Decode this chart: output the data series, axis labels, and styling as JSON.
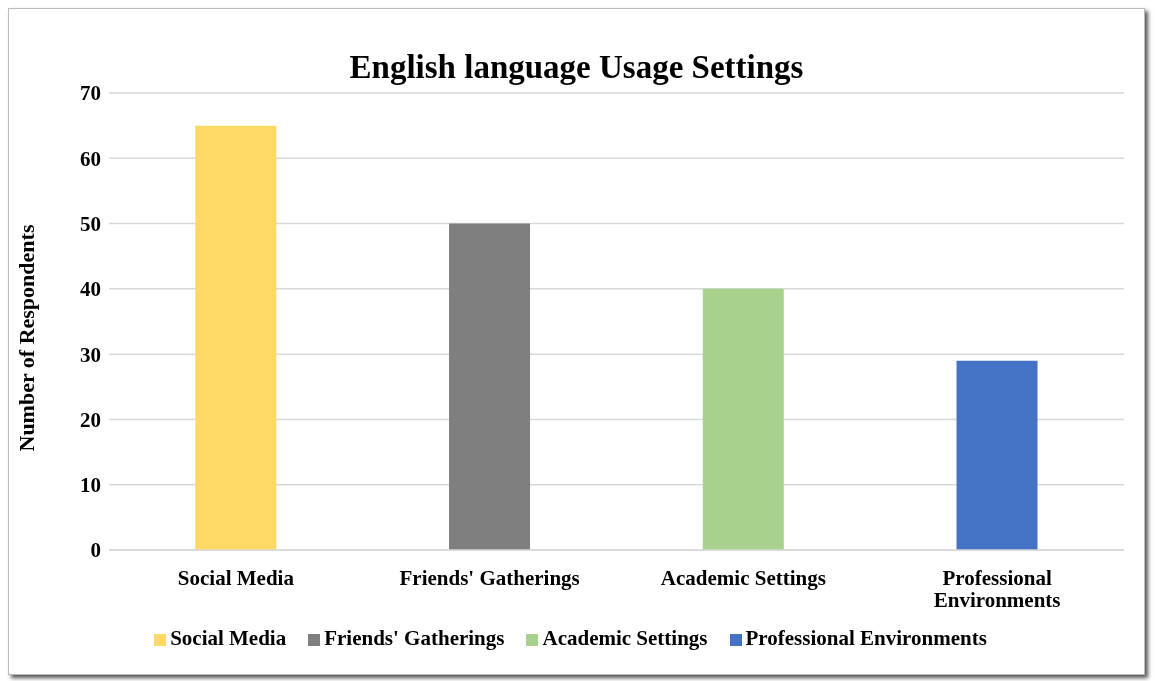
{
  "chart_data": {
    "type": "bar",
    "title": "English language Usage Settings",
    "ylabel": "Number of Respondents",
    "stacked": true,
    "categories": [
      "Social Media",
      "Friends' Gatherings",
      "Academic Settings",
      "Professional Environments"
    ],
    "series": [
      {
        "name": "Social Media",
        "color": "#ffd966",
        "values": [
          65,
          null,
          null,
          null
        ]
      },
      {
        "name": "Friends' Gatherings",
        "color": "#7f7f7f",
        "values": [
          null,
          50,
          null,
          null
        ]
      },
      {
        "name": "Academic Settings",
        "color": "#a9d18e",
        "values": [
          null,
          null,
          40,
          null
        ]
      },
      {
        "name": "Professional Environments",
        "color": "#4472c4",
        "values": [
          null,
          null,
          null,
          29
        ]
      }
    ],
    "ylim": [
      0,
      70
    ],
    "yticks": [
      0,
      10,
      20,
      30,
      40,
      50,
      60,
      70
    ],
    "grid": "y",
    "legend": "bottom"
  }
}
